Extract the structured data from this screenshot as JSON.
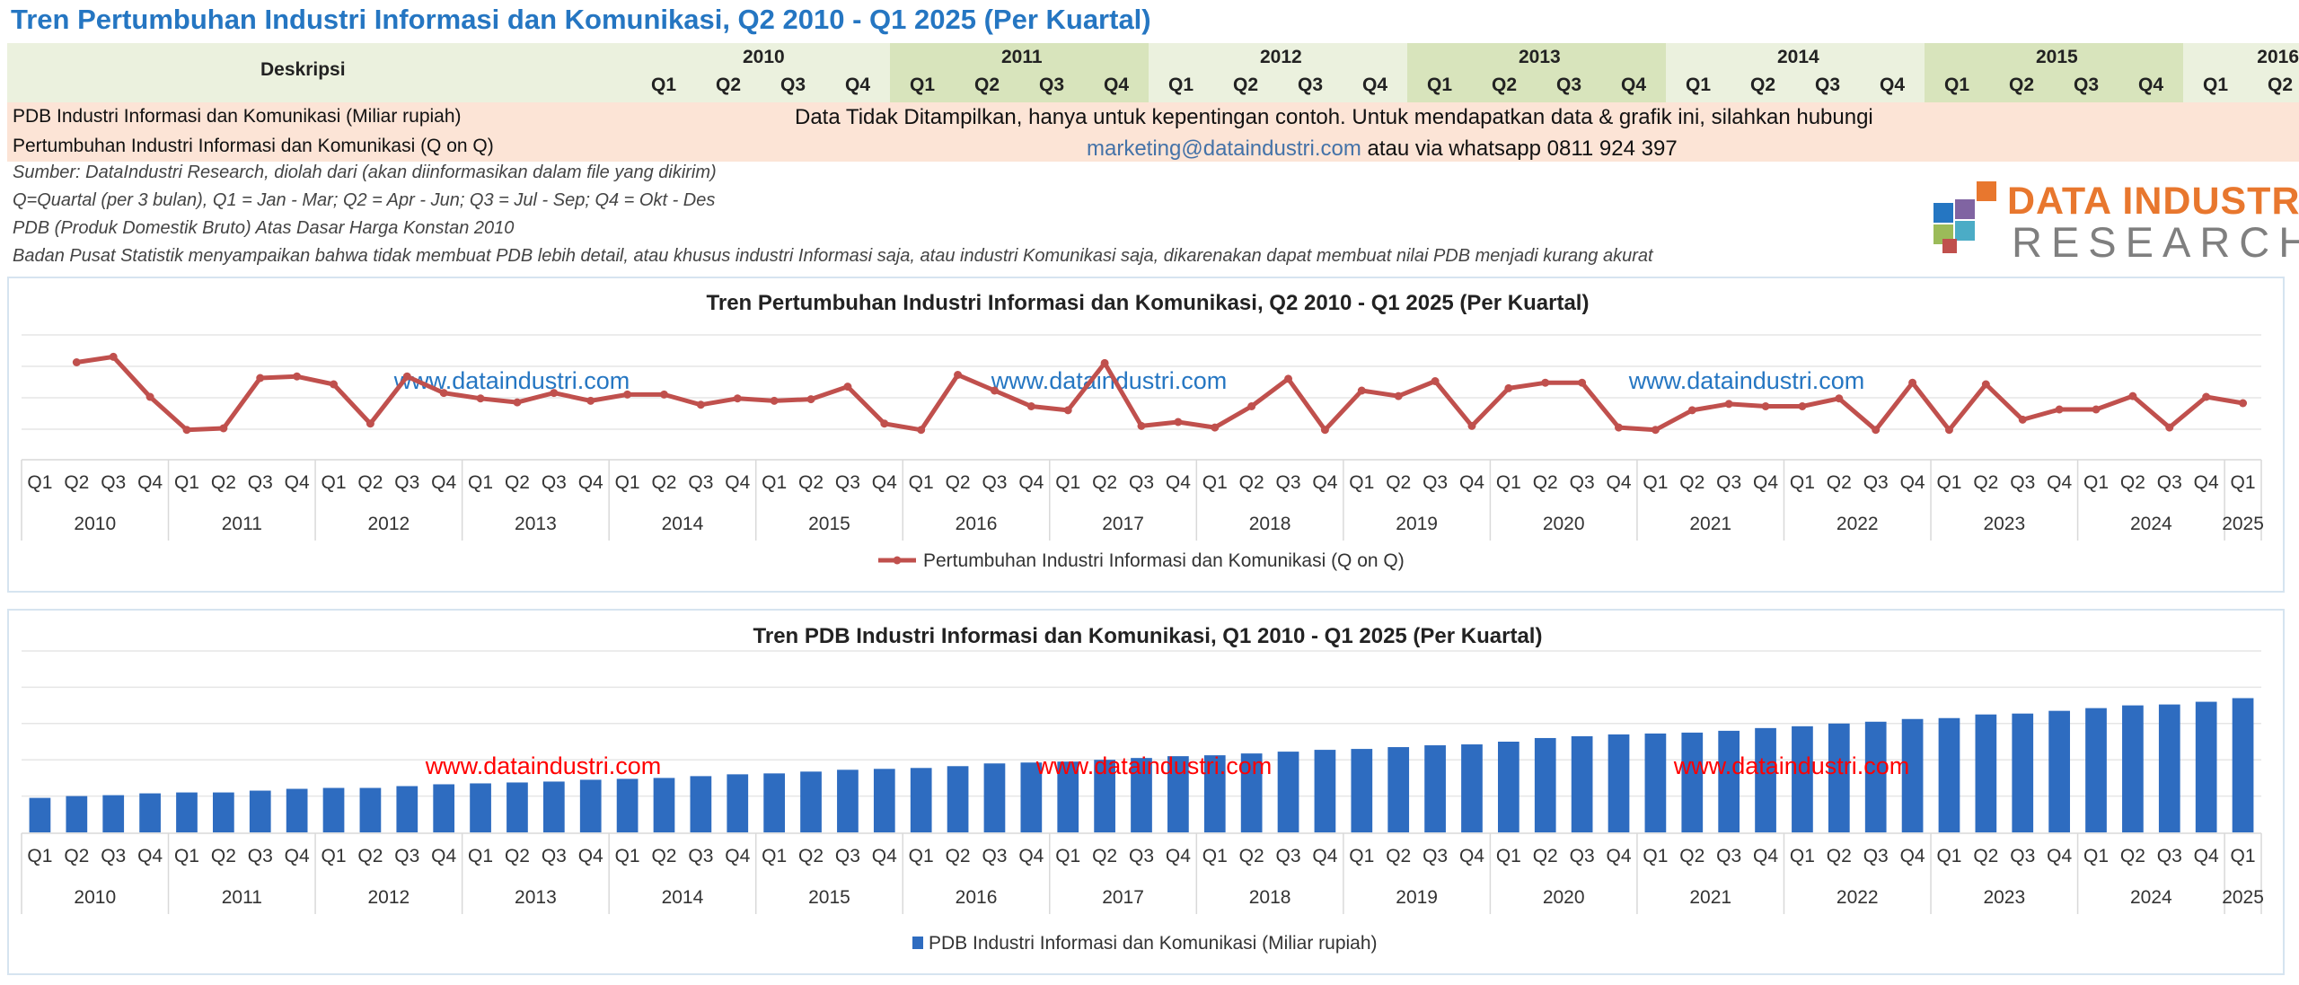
{
  "page_title": "Tren Pertumbuhan Industri Informasi dan Komunikasi, Q2 2010 - Q1 2025 (Per Kuartal)",
  "table": {
    "desc_header": "Deskripsi",
    "years": [
      "2010",
      "2011",
      "2012",
      "2013",
      "2014",
      "2015",
      "2016"
    ],
    "quarters": [
      "Q1",
      "Q2",
      "Q3",
      "Q4"
    ],
    "rows": [
      "PDB Industri Informasi dan Komunikasi (Miliar rupiah)",
      "Pertumbuhan Industri Informasi dan Komunikasi (Q on Q)"
    ],
    "notice_line1": "Data Tidak Ditampilkan, hanya untuk kepentingan contoh. Untuk mendapatkan data & grafik  ini, silahkan hubungi",
    "notice_email": "marketing@dataindustri.com",
    "notice_rest": " atau via whatsapp 0811 924 397"
  },
  "notes": [
    "Sumber: DataIndustri Research, diolah dari (akan diinformasikan dalam file yang dikirim)",
    "Q=Quartal (per 3 bulan), Q1 = Jan - Mar; Q2 = Apr - Jun; Q3 = Jul - Sep; Q4 = Okt - Des",
    "PDB (Produk Domestik Bruto) Atas Dasar Harga Konstan 2010",
    "Badan Pusat Statistik menyampaikan bahwa tidak membuat PDB lebih detail, atau khusus industri Informasi saja, atau industri Komunikasi saja, dikarenakan dapat membuat nilai PDB menjadi kurang akurat"
  ],
  "logo": {
    "line1": "DATA INDUSTRI",
    "line2": "RESEARCH"
  },
  "colors": {
    "line": "#c0504d",
    "bar": "#2e6cc0",
    "watermark_line": "#2576c2",
    "watermark_bar": "#ff0000",
    "title_blue": "#2576c2",
    "band_light": "#ebf1de",
    "band_dark": "#d8e4bc",
    "row_fill": "#fce4d6",
    "logo_orange": "#e8772e",
    "logo_gray": "#7f7f7f"
  },
  "chart_data": [
    {
      "type": "line",
      "title": "Tren Pertumbuhan Industri Informasi dan Komunikasi, Q2 2010 - Q1 2025 (Per Kuartal)",
      "years": [
        "2010",
        "2011",
        "2012",
        "2013",
        "2014",
        "2015",
        "2016",
        "2017",
        "2018",
        "2019",
        "2020",
        "2021",
        "2022",
        "2023",
        "2024",
        "2025"
      ],
      "quarters": [
        "Q1",
        "Q2",
        "Q3",
        "Q4"
      ],
      "series": [
        {
          "name": "Pertumbuhan Industri Informasi dan Komunikasi (Q on Q)",
          "values": [
            null,
            0.86,
            0.93,
            0.42,
            0.0,
            0.02,
            0.66,
            0.68,
            0.58,
            0.08,
            0.68,
            0.47,
            0.4,
            0.35,
            0.47,
            0.37,
            0.45,
            0.45,
            0.32,
            0.4,
            0.37,
            0.39,
            0.55,
            0.08,
            0.0,
            0.7,
            0.5,
            0.3,
            0.25,
            0.85,
            0.05,
            0.1,
            0.03,
            0.3,
            0.65,
            0.0,
            0.5,
            0.43,
            0.62,
            0.05,
            0.53,
            0.6,
            0.6,
            0.03,
            0.0,
            0.25,
            0.33,
            0.3,
            0.3,
            0.4,
            0.0,
            0.6,
            0.0,
            0.58,
            0.13,
            0.26,
            0.26,
            0.43,
            0.03,
            0.42,
            0.34
          ]
        }
      ],
      "ylim": [
        -0.3,
        1.3
      ],
      "grid": true,
      "legend": "bottom",
      "watermark": "www.dataindustri.com"
    },
    {
      "type": "bar",
      "title": "Tren PDB Industri Informasi dan Komunikasi, Q1 2010 - Q1 2025 (Per Kuartal)",
      "years": [
        "2010",
        "2011",
        "2012",
        "2013",
        "2014",
        "2015",
        "2016",
        "2017",
        "2018",
        "2019",
        "2020",
        "2021",
        "2022",
        "2023",
        "2024",
        "2025"
      ],
      "quarters": [
        "Q1",
        "Q2",
        "Q3",
        "Q4"
      ],
      "series": [
        {
          "name": "PDB Industri Informasi dan Komunikasi (Miliar rupiah)",
          "values": [
            38,
            40,
            41,
            43,
            44,
            44,
            46,
            48,
            49,
            49,
            51,
            53,
            54,
            55,
            56,
            58,
            59,
            60,
            62,
            64,
            65,
            67,
            69,
            70,
            71,
            73,
            76,
            77,
            78,
            80,
            82,
            84,
            85,
            87,
            89,
            91,
            92,
            94,
            96,
            97,
            100,
            104,
            106,
            108,
            109,
            110,
            112,
            115,
            117,
            120,
            122,
            125,
            126,
            130,
            131,
            134,
            137,
            140,
            141,
            144,
            148
          ]
        }
      ],
      "ylim": [
        0,
        200
      ],
      "grid": true,
      "legend": "bottom",
      "watermark": "www.dataindustri.com"
    }
  ]
}
